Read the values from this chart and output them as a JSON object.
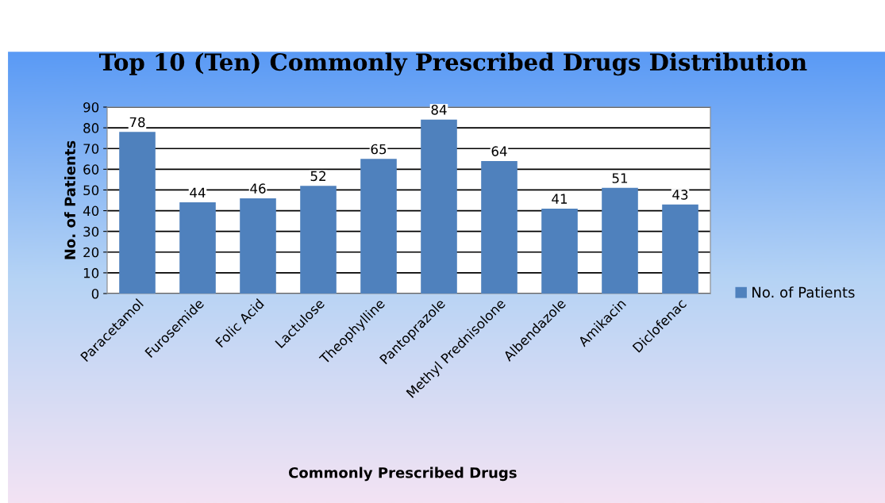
{
  "chart_data": {
    "type": "bar",
    "title": "Top 10 (Ten) Commonly Prescribed Drugs Distribution",
    "xlabel": "Commonly Prescribed Drugs",
    "ylabel": "No. of Patients",
    "categories": [
      "Paracetamol",
      "Furosemide",
      "Folic Acid",
      "Lactulose",
      "Theophylline",
      "Pantoprazole",
      "Methyl Prednisolone",
      "Albendazole",
      "Amikacin",
      "Diclofenac"
    ],
    "series": [
      {
        "name": "No. of Patients",
        "color": "#4f81bd",
        "values": [
          78,
          44,
          46,
          52,
          65,
          84,
          64,
          41,
          51,
          43
        ]
      }
    ],
    "ylim": [
      0,
      90
    ],
    "yticks": [
      0,
      10,
      20,
      30,
      40,
      50,
      60,
      70,
      80,
      90
    ],
    "grid": "y",
    "legend": "right",
    "data_labels": true
  }
}
